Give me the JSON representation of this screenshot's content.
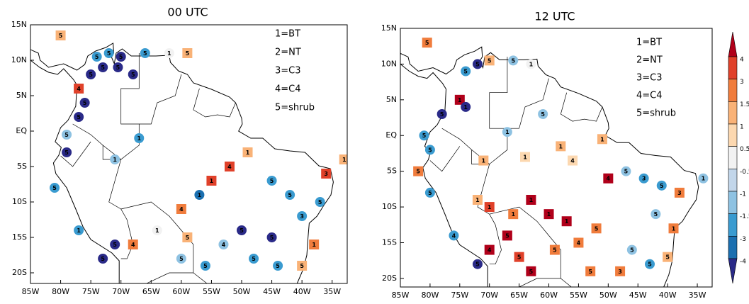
{
  "panels": [
    {
      "title": "00 UTC",
      "xlim": [
        -85,
        -32.5
      ],
      "ylim": [
        -21.5,
        15
      ],
      "xticks": [
        {
          "value": -85,
          "label": "85W"
        },
        {
          "value": -80,
          "label": "80W"
        },
        {
          "value": -75,
          "label": "75W"
        },
        {
          "value": -70,
          "label": "70W"
        },
        {
          "value": -65,
          "label": "65W"
        },
        {
          "value": -60,
          "label": "60W"
        },
        {
          "value": -55,
          "label": "55W"
        },
        {
          "value": -50,
          "label": "50W"
        },
        {
          "value": -45,
          "label": "45W"
        },
        {
          "value": -40,
          "label": "40W"
        },
        {
          "value": -35,
          "label": "35W"
        }
      ],
      "yticks": [
        {
          "value": 15,
          "label": "15N"
        },
        {
          "value": 10,
          "label": "10N"
        },
        {
          "value": 5,
          "label": "5N"
        },
        {
          "value": 0,
          "label": "EQ"
        },
        {
          "value": -5,
          "label": "5S"
        },
        {
          "value": -10,
          "label": "10S"
        },
        {
          "value": -15,
          "label": "15S"
        },
        {
          "value": -20,
          "label": "20S"
        }
      ],
      "legend": [
        "1=BT",
        "2=NT",
        "3=C3",
        "4=C4",
        "5=shrub"
      ],
      "stations": [
        {
          "lon": -80,
          "lat": 13.5,
          "class": 5,
          "value": 1.2
        },
        {
          "lon": -74,
          "lat": 10.5,
          "class": 5,
          "value": -2
        },
        {
          "lon": -72,
          "lat": 11,
          "class": 5,
          "value": -2
        },
        {
          "lon": -70,
          "lat": 10.5,
          "class": 5,
          "value": -4.5
        },
        {
          "lon": -66,
          "lat": 11,
          "class": 5,
          "value": -2
        },
        {
          "lon": -62,
          "lat": 11,
          "class": 1,
          "value": 0
        },
        {
          "lon": -59,
          "lat": 11,
          "class": 5,
          "value": 1.2
        },
        {
          "lon": -75,
          "lat": 8,
          "class": 5,
          "value": -4.5
        },
        {
          "lon": -73,
          "lat": 9,
          "class": 5,
          "value": -4.5
        },
        {
          "lon": -70.5,
          "lat": 9,
          "class": 5,
          "value": -4.5
        },
        {
          "lon": -68,
          "lat": 8,
          "class": 5,
          "value": -4.5
        },
        {
          "lon": -77,
          "lat": 6,
          "class": 4,
          "value": 3.5
        },
        {
          "lon": -76,
          "lat": 4,
          "class": 5,
          "value": -4.5
        },
        {
          "lon": -77,
          "lat": 2,
          "class": 5,
          "value": -4.5
        },
        {
          "lon": -79,
          "lat": -0.5,
          "class": 5,
          "value": -1.2
        },
        {
          "lon": -79,
          "lat": -3,
          "class": 5,
          "value": -4.5
        },
        {
          "lon": -71,
          "lat": -4,
          "class": 1,
          "value": -1.2
        },
        {
          "lon": -67,
          "lat": -1,
          "class": 1,
          "value": -2
        },
        {
          "lon": -81,
          "lat": -8,
          "class": 5,
          "value": -2
        },
        {
          "lon": -77,
          "lat": -14,
          "class": 1,
          "value": -2
        },
        {
          "lon": -73,
          "lat": -18,
          "class": 5,
          "value": -4.5
        },
        {
          "lon": -71,
          "lat": -16,
          "class": 5,
          "value": -4.5
        },
        {
          "lon": -68,
          "lat": -16,
          "class": 4,
          "value": 2.5
        },
        {
          "lon": -64,
          "lat": -14,
          "class": 1,
          "value": 0
        },
        {
          "lon": -60,
          "lat": -18,
          "class": 5,
          "value": -1.2
        },
        {
          "lon": -60,
          "lat": -11,
          "class": 4,
          "value": 2.5
        },
        {
          "lon": -57,
          "lat": -9,
          "class": 1,
          "value": -3.5
        },
        {
          "lon": -52,
          "lat": -5,
          "class": 4,
          "value": 3.5
        },
        {
          "lon": -55,
          "lat": -7,
          "class": 1,
          "value": 3.5
        },
        {
          "lon": -49,
          "lat": -3,
          "class": 1,
          "value": 1.2
        },
        {
          "lon": -45,
          "lat": -7,
          "class": 5,
          "value": -2
        },
        {
          "lon": -42,
          "lat": -9,
          "class": 5,
          "value": -2.5
        },
        {
          "lon": -40,
          "lat": -12,
          "class": 3,
          "value": -2
        },
        {
          "lon": -38,
          "lat": -16,
          "class": 1,
          "value": 3
        },
        {
          "lon": -45,
          "lat": -15,
          "class": 5,
          "value": -4.5
        },
        {
          "lon": -50,
          "lat": -14,
          "class": 5,
          "value": -4.5
        },
        {
          "lon": -48,
          "lat": -18,
          "class": 5,
          "value": -2
        },
        {
          "lon": -44,
          "lat": -19,
          "class": 5,
          "value": -2
        },
        {
          "lon": -40,
          "lat": -19,
          "class": 5,
          "value": 1.2
        },
        {
          "lon": -33,
          "lat": -4,
          "class": 1,
          "value": 1.2
        },
        {
          "lon": -36,
          "lat": -6,
          "class": 3,
          "value": 3.5
        },
        {
          "lon": -37,
          "lat": -10,
          "class": 5,
          "value": -2
        },
        {
          "lon": -53,
          "lat": -16,
          "class": 4,
          "value": -1
        },
        {
          "lon": -56,
          "lat": -19,
          "class": 5,
          "value": -2
        },
        {
          "lon": -59,
          "lat": -15,
          "class": 5,
          "value": 1.5
        }
      ]
    },
    {
      "title": "12 UTC",
      "xlim": [
        -85,
        -32.5
      ],
      "ylim": [
        -21.2,
        15
      ],
      "xticks": [
        {
          "value": -85,
          "label": "85W"
        },
        {
          "value": -80,
          "label": "80W"
        },
        {
          "value": -75,
          "label": "75W"
        },
        {
          "value": -70,
          "label": "70W"
        },
        {
          "value": -65,
          "label": "65W"
        },
        {
          "value": -60,
          "label": "60W"
        },
        {
          "value": -55,
          "label": "55W"
        },
        {
          "value": -50,
          "label": "50W"
        },
        {
          "value": -45,
          "label": "45W"
        },
        {
          "value": -40,
          "label": "40W"
        },
        {
          "value": -35,
          "label": "35W"
        }
      ],
      "yticks": [
        {
          "value": 15,
          "label": "15N"
        },
        {
          "value": 10,
          "label": "10N"
        },
        {
          "value": 5,
          "label": "5N"
        },
        {
          "value": 0,
          "label": "EQ"
        },
        {
          "value": -5,
          "label": "5S"
        },
        {
          "value": -10,
          "label": "10S"
        },
        {
          "value": -15,
          "label": "15S"
        },
        {
          "value": -20,
          "label": "20S"
        }
      ],
      "legend": [
        "1=BT",
        "2=NT",
        "3=C3",
        "4=C4",
        "5=shrub"
      ],
      "stations": [
        {
          "lon": -80.5,
          "lat": 13,
          "class": 5,
          "value": 2.5
        },
        {
          "lon": -74,
          "lat": 9,
          "class": 5,
          "value": -2
        },
        {
          "lon": -72,
          "lat": 10,
          "class": 5,
          "value": -4.5
        },
        {
          "lon": -70,
          "lat": 10.5,
          "class": 5,
          "value": 1.2
        },
        {
          "lon": -66,
          "lat": 10.5,
          "class": 5,
          "value": -1.2
        },
        {
          "lon": -63,
          "lat": 10,
          "class": 1,
          "value": 0
        },
        {
          "lon": -75,
          "lat": 5,
          "class": 1,
          "value": 4.5
        },
        {
          "lon": -74,
          "lat": 4,
          "class": 1,
          "value": -4.5
        },
        {
          "lon": -78,
          "lat": 3,
          "class": 5,
          "value": -4.5
        },
        {
          "lon": -81,
          "lat": 0,
          "class": 5,
          "value": -2
        },
        {
          "lon": -80,
          "lat": -2,
          "class": 5,
          "value": -2
        },
        {
          "lon": -82,
          "lat": -5,
          "class": 5,
          "value": 3
        },
        {
          "lon": -80,
          "lat": -8,
          "class": 5,
          "value": -2
        },
        {
          "lon": -76,
          "lat": -14,
          "class": 4,
          "value": -2
        },
        {
          "lon": -72,
          "lat": -18,
          "class": 5,
          "value": -4.5
        },
        {
          "lon": -70,
          "lat": -16,
          "class": 4,
          "value": 4.5
        },
        {
          "lon": -67,
          "lat": -14,
          "class": 5,
          "value": 4.5
        },
        {
          "lon": -65,
          "lat": -17,
          "class": 5,
          "value": 3.5
        },
        {
          "lon": -63,
          "lat": -19,
          "class": 5,
          "value": 4.5
        },
        {
          "lon": -72,
          "lat": -9,
          "class": 1,
          "value": 1.2
        },
        {
          "lon": -70,
          "lat": -10,
          "class": 1,
          "value": 3.5
        },
        {
          "lon": -66,
          "lat": -11,
          "class": 1,
          "value": 2.5
        },
        {
          "lon": -63,
          "lat": -9,
          "class": 1,
          "value": 4.5
        },
        {
          "lon": -60,
          "lat": -11,
          "class": 1,
          "value": 4.5
        },
        {
          "lon": -57,
          "lat": -12,
          "class": 1,
          "value": 4.5
        },
        {
          "lon": -59,
          "lat": -16,
          "class": 5,
          "value": 3
        },
        {
          "lon": -55,
          "lat": -15,
          "class": 4,
          "value": 2.5
        },
        {
          "lon": -52,
          "lat": -13,
          "class": 5,
          "value": 2.5
        },
        {
          "lon": -50,
          "lat": -6,
          "class": 4,
          "value": 4.5
        },
        {
          "lon": -47,
          "lat": -5,
          "class": 5,
          "value": -1.2
        },
        {
          "lon": -44,
          "lat": -6,
          "class": 3,
          "value": -2
        },
        {
          "lon": -41,
          "lat": -7,
          "class": 5,
          "value": -2
        },
        {
          "lon": -38,
          "lat": -8,
          "class": 3,
          "value": 3
        },
        {
          "lon": -42,
          "lat": -11,
          "class": 5,
          "value": -1.2
        },
        {
          "lon": -39,
          "lat": -13,
          "class": 1,
          "value": 2.5
        },
        {
          "lon": -46,
          "lat": -16,
          "class": 5,
          "value": -1.2
        },
        {
          "lon": -43,
          "lat": -18,
          "class": 5,
          "value": -2
        },
        {
          "lon": -40,
          "lat": -17,
          "class": 5,
          "value": 1.2
        },
        {
          "lon": -48,
          "lat": -19,
          "class": 3,
          "value": 2.5
        },
        {
          "lon": -53,
          "lat": -19,
          "class": 5,
          "value": 2.5
        },
        {
          "lon": -34,
          "lat": -6,
          "class": 1,
          "value": -1.2
        },
        {
          "lon": -58,
          "lat": -1.5,
          "class": 1,
          "value": 1.2
        },
        {
          "lon": -61,
          "lat": 3,
          "class": 5,
          "value": -1.2
        },
        {
          "lon": -67,
          "lat": 0.5,
          "class": 1,
          "value": -1.2
        },
        {
          "lon": -71,
          "lat": -3.5,
          "class": 1,
          "value": 1.2
        },
        {
          "lon": -64,
          "lat": -3,
          "class": 1,
          "value": 0.8
        },
        {
          "lon": -56,
          "lat": -3.5,
          "class": 4,
          "value": 0.8
        },
        {
          "lon": -51,
          "lat": -0.5,
          "class": 1,
          "value": 1.2
        }
      ]
    }
  ],
  "colorbar": {
    "ticks": [
      4,
      3,
      1.5,
      1,
      0.5,
      -0.5,
      -1,
      -1.5,
      -3,
      -4
    ],
    "colors": [
      "#b0001a",
      "#e0412a",
      "#f07c3c",
      "#f9b277",
      "#fcd8b0",
      "#f2f2f2",
      "#c2d6ea",
      "#8ec2e2",
      "#3a9bd0",
      "#1a6fb0",
      "#2a2a88"
    ]
  }
}
